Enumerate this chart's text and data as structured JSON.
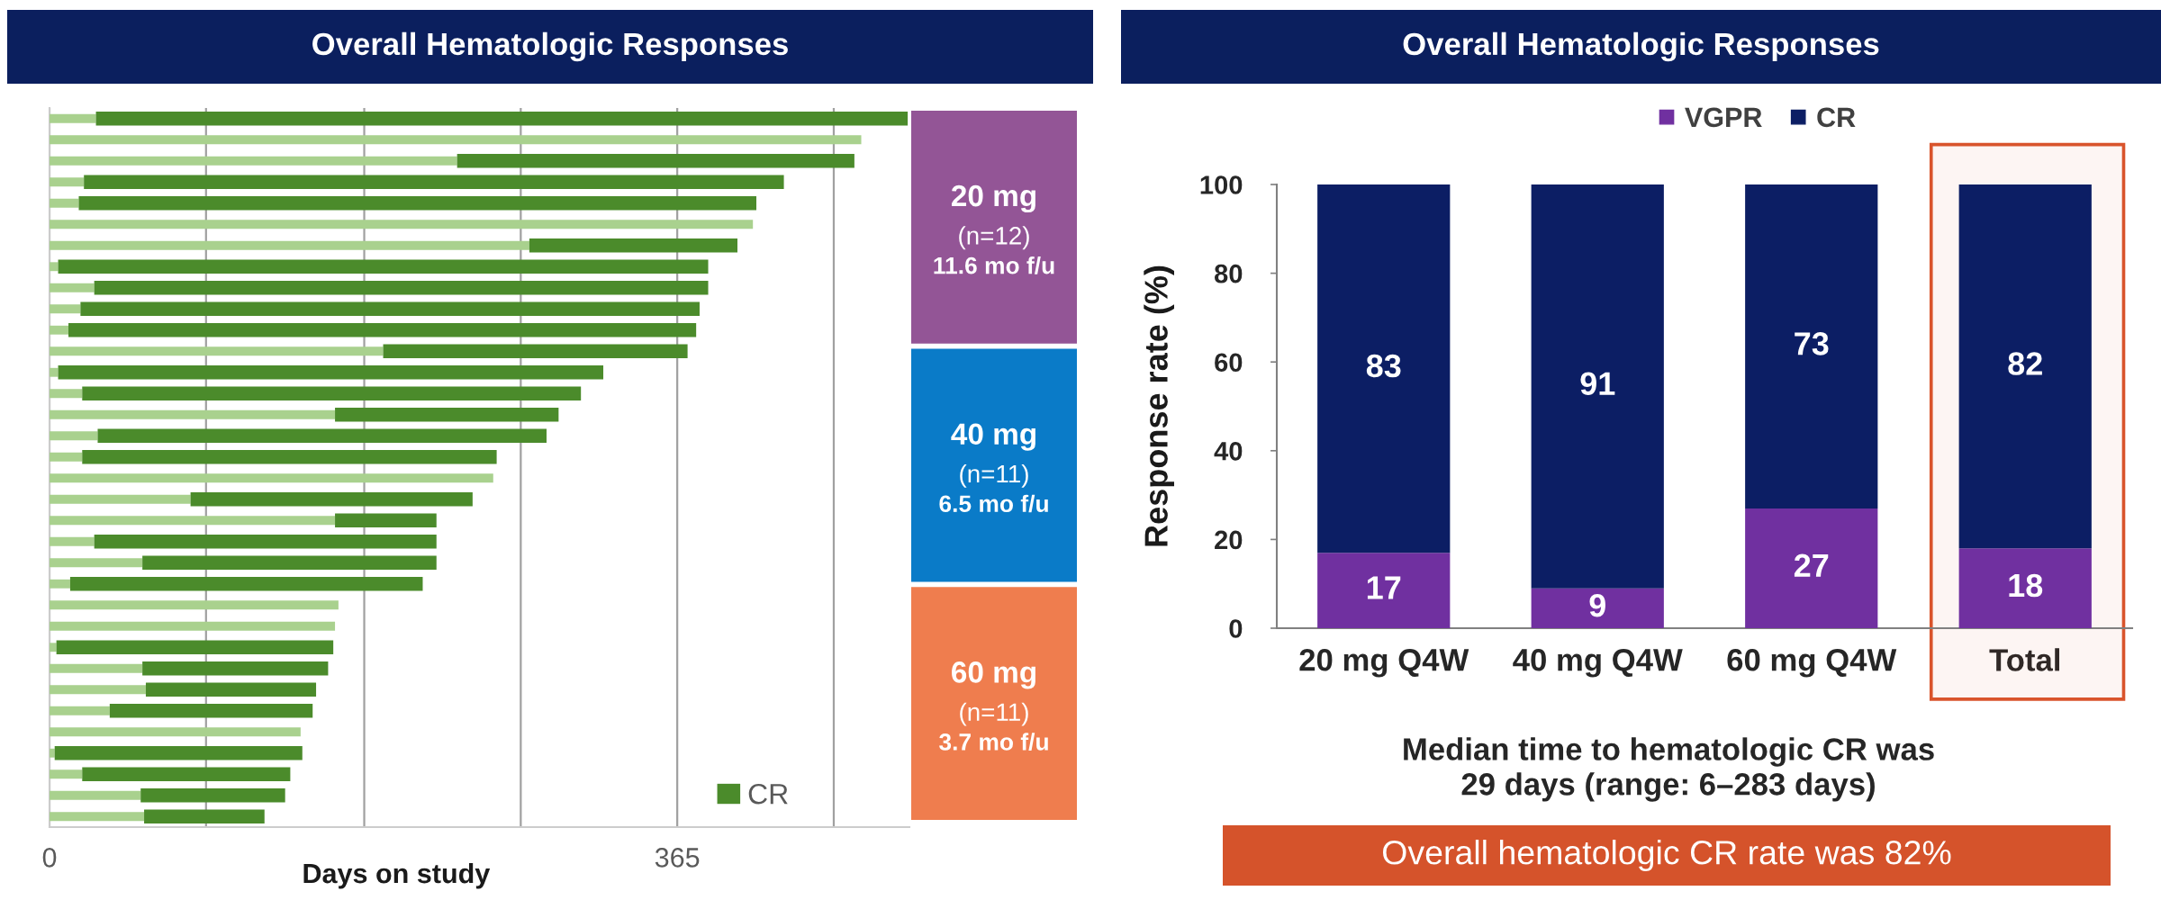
{
  "chart_data": [
    {
      "type": "bar",
      "orientation": "horizontal",
      "stacked": true,
      "title": "Overall Hematologic Responses",
      "xlabel": "Days on study",
      "categories": [
        null,
        null,
        null,
        null,
        null,
        null,
        null,
        null,
        null,
        null,
        null,
        null,
        null,
        null,
        null,
        null,
        null,
        null,
        null,
        null,
        null,
        null,
        null,
        null,
        null,
        null,
        null,
        null,
        null,
        null,
        null,
        null,
        null,
        null
      ],
      "series": [
        {
          "color": "#a9d18e",
          "values": [
            27,
            472,
            237,
            20,
            17,
            409,
            279,
            5,
            26,
            18,
            11,
            194,
            5,
            19,
            166,
            28,
            19,
            258,
            82,
            166,
            26,
            54,
            12,
            168,
            166,
            4,
            54,
            56,
            35,
            146,
            3,
            19,
            53,
            55
          ]
        },
        {
          "name": "CR",
          "color": "#4b8b2b",
          "values": [
            472,
            null,
            231,
            407,
            394,
            null,
            121,
            378,
            357,
            360,
            365,
            177,
            317,
            290,
            130,
            261,
            241,
            null,
            164,
            59,
            199,
            171,
            205,
            null,
            null,
            161,
            108,
            99,
            118,
            null,
            144,
            121,
            84,
            70
          ]
        }
      ],
      "xlim": [
        0,
        500
      ],
      "xticks": [
        0,
        {
          "value": 91,
          "label": null
        },
        {
          "value": 183,
          "label": null
        },
        {
          "value": 274,
          "label": null
        },
        365,
        {
          "value": 456,
          "label": null
        }
      ],
      "grid": "x",
      "legend": "bottom right",
      "tick_labels": "x"
    },
    {
      "type": "other",
      "categories": [
        "20 mg",
        "40 mg",
        "60 mg"
      ],
      "annotations": [
        "(n=12)",
        "11.6 mo f/u",
        "(n=11)",
        "6.5 mo f/u",
        "(n=11)",
        "3.7 mo f/u"
      ],
      "colors": [
        "#935596",
        "#0a7bc8",
        "#ef7d4e"
      ]
    },
    {
      "type": "bar",
      "title": "Overall Hematologic Responses",
      "ylabel": "Response rate (%)",
      "categories": [
        "20 mg Q4W",
        "40 mg Q4W",
        "60 mg Q4W",
        "Total"
      ],
      "stacked": true,
      "series": [
        {
          "name": "VGPR",
          "color": "#7030a0",
          "values": [
            17,
            9,
            27,
            18
          ]
        },
        {
          "name": "CR",
          "color": "#0c1e64",
          "values": [
            83,
            91,
            73,
            82
          ]
        }
      ],
      "ylim": [
        0,
        100
      ],
      "yticks": [
        0,
        20,
        40,
        60,
        80,
        100
      ],
      "data_labels": true,
      "legend": "top",
      "bands": [
        {
          "axis": "x",
          "from": "Total",
          "to": "Total",
          "color": "#d9542c"
        }
      ],
      "annotations": [
        "Median time to hematologic CR was\n29 days (range: 6–283 days)",
        "Overall hematologic CR rate was 82%"
      ]
    }
  ]
}
